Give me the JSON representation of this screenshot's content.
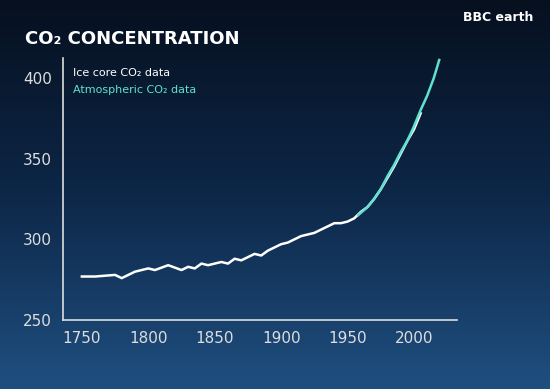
{
  "chart_data": {
    "type": "line",
    "title": "CO₂ CONCENTRATION",
    "annotations": [
      "BBC earth"
    ],
    "series": [
      {
        "name": "Ice core CO₂ data",
        "color": "#ffffff",
        "x": [
          1750,
          1760,
          1775,
          1780,
          1790,
          1800,
          1805,
          1815,
          1825,
          1830,
          1835,
          1840,
          1845,
          1850,
          1855,
          1860,
          1865,
          1870,
          1875,
          1880,
          1885,
          1890,
          1895,
          1900,
          1905,
          1910,
          1915,
          1920,
          1925,
          1930,
          1935,
          1940,
          1945,
          1950,
          1955,
          1960,
          1965,
          1970,
          1975,
          1980,
          1985,
          1990,
          1995,
          2000,
          2005
        ],
        "values": [
          277,
          277,
          278,
          276,
          280,
          282,
          281,
          284,
          281,
          283,
          282,
          285,
          284,
          285,
          286,
          285,
          288,
          287,
          289,
          291,
          290,
          293,
          295,
          297,
          298,
          300,
          302,
          303,
          304,
          306,
          308,
          310,
          310,
          311,
          313,
          317,
          320,
          325,
          331,
          338,
          345,
          353,
          361,
          368,
          378
        ]
      },
      {
        "name": "Atmospheric CO₂ data",
        "color": "#5fe0d0",
        "x": [
          1958,
          1965,
          1970,
          1975,
          1980,
          1985,
          1990,
          1995,
          2000,
          2005,
          2010,
          2015,
          2019
        ],
        "values": [
          315,
          320,
          325,
          331,
          339,
          346,
          354,
          361,
          370,
          380,
          389,
          400,
          411
        ]
      }
    ],
    "xlim": [
      1736,
      2032
    ],
    "xticks": [
      1750,
      1800,
      1850,
      1900,
      1950,
      2000
    ],
    "ylim": [
      250,
      412
    ],
    "yticks": [
      250,
      300,
      350,
      400
    ],
    "grid": false,
    "legend": "upper left"
  }
}
